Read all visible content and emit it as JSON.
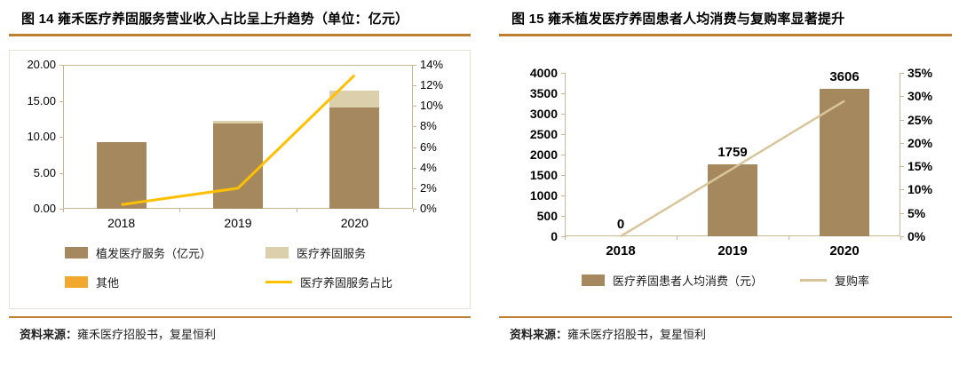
{
  "accent_color": "#BD7F2F",
  "panels": [
    {
      "source_label": "资料来源：",
      "source_text": "雍禾医疗招股书，复星恒利"
    },
    {
      "source_label": "资料来源：",
      "source_text": "雍禾医疗招股书，复星恒利"
    }
  ],
  "chart_data": [
    {
      "type": "bar",
      "subtype": "stacked-column-with-line",
      "title": "图 14 雍禾医疗养固服务营业收入占比呈上升趋势（单位：亿元）",
      "categories": [
        "2018",
        "2019",
        "2020"
      ],
      "series": [
        {
          "name": "植发医疗服务（亿元）",
          "kind": "bar",
          "color": "#A6885E",
          "values": [
            9.2,
            11.9,
            14.1
          ]
        },
        {
          "name": "医疗养固服务",
          "kind": "bar",
          "color": "#DCCFAC",
          "values": [
            0,
            0.3,
            2.3
          ]
        },
        {
          "name": "其他",
          "kind": "bar",
          "color": "#F2A72E",
          "values": [
            0,
            0,
            0
          ]
        },
        {
          "name": "医疗养固服务占比",
          "kind": "line",
          "axis": "right",
          "color": "#FFC000",
          "values": [
            0.4,
            2.0,
            13.0
          ]
        }
      ],
      "left_axis": {
        "min": 0,
        "max": 20,
        "tick_labels": [
          "0.00",
          "5.00",
          "10.00",
          "15.00",
          "20.00"
        ]
      },
      "right_axis": {
        "min": 0,
        "max": 14,
        "tick_labels": [
          "0%",
          "2%",
          "4%",
          "6%",
          "8%",
          "10%",
          "12%",
          "14%"
        ]
      },
      "legend_position": "bottom",
      "grid": false
    },
    {
      "type": "bar",
      "subtype": "column-with-line",
      "title": "图 15 雍禾植发医疗养固患者人均消费与复购率显著提升",
      "categories": [
        "2018",
        "2019",
        "2020"
      ],
      "series": [
        {
          "name": "医疗养固患者人均消费（元）",
          "kind": "bar",
          "color": "#A6885E",
          "values": [
            0,
            1759,
            3606
          ],
          "data_labels": [
            "0",
            "1759",
            "3606"
          ]
        },
        {
          "name": "复购率",
          "kind": "line",
          "axis": "right",
          "color": "#D9C49C",
          "values": [
            0,
            14.5,
            29
          ]
        }
      ],
      "left_axis": {
        "min": 0,
        "max": 4000,
        "tick_labels": [
          "0",
          "500",
          "1000",
          "1500",
          "2000",
          "2500",
          "3000",
          "3500",
          "4000"
        ]
      },
      "right_axis": {
        "min": 0,
        "max": 35,
        "tick_labels": [
          "0%",
          "5%",
          "10%",
          "15%",
          "20%",
          "25%",
          "30%",
          "35%"
        ]
      },
      "legend_position": "bottom",
      "grid": false
    }
  ]
}
